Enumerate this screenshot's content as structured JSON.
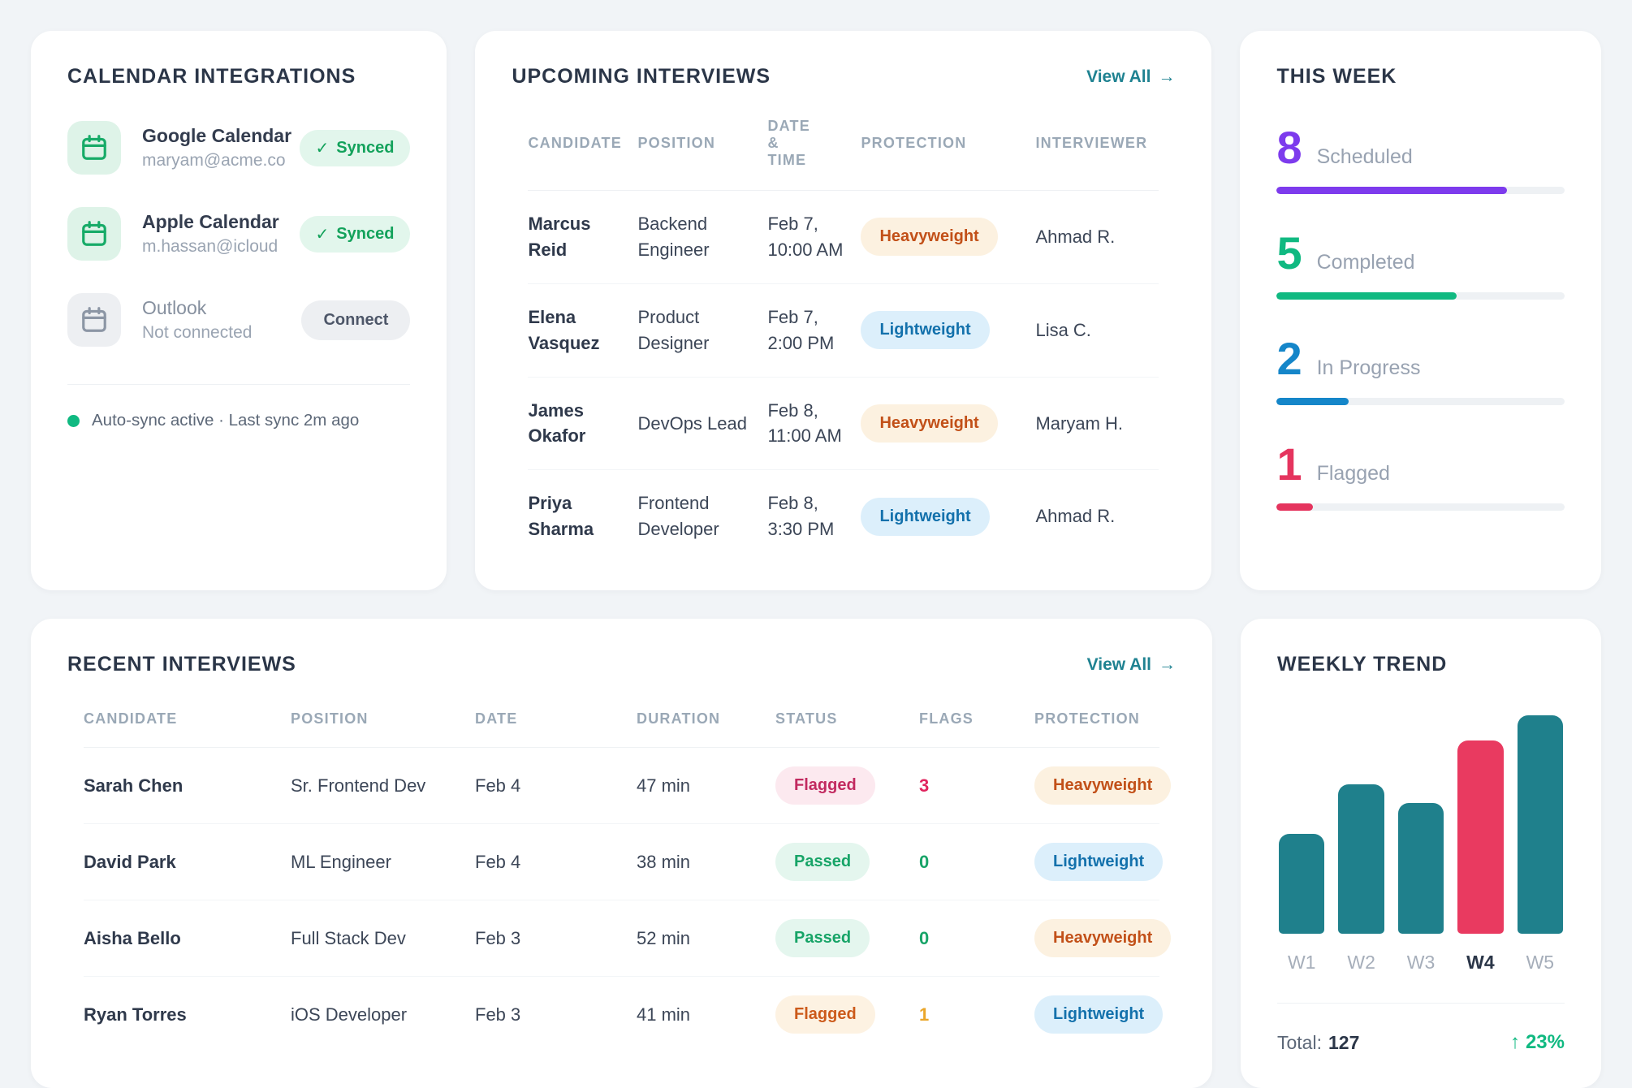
{
  "icons": {
    "check": "✓",
    "arrow_right": "→",
    "arrow_up": "↑"
  },
  "calendar_card": {
    "title": "CALENDAR INTEGRATIONS",
    "integrations": [
      {
        "name": "Google Calendar",
        "detail": "maryam@acme.co",
        "action": "Synced"
      },
      {
        "name": "Apple Calendar",
        "detail": "m.hassan@icloud",
        "action": "Synced"
      },
      {
        "name": "Outlook",
        "detail": "Not connected",
        "action": "Connect"
      }
    ],
    "footer": "Auto-sync active · Last sync 2m ago"
  },
  "upcoming_card": {
    "title": "UPCOMING INTERVIEWS",
    "view_all": "View All",
    "columns": {
      "candidate": "CANDIDATE",
      "position": "POSITION",
      "datetime": "DATE & TIME",
      "protection": "PROTECTION",
      "interviewer": "INTERVIEWER"
    },
    "rows": [
      {
        "candidate": "Marcus Reid",
        "position": "Backend Engineer",
        "datetime": "Feb 7, 10:00 AM",
        "protection": "Heavyweight",
        "interviewer": "Ahmad R."
      },
      {
        "candidate": "Elena Vasquez",
        "position": "Product Designer",
        "datetime": "Feb 7, 2:00 PM",
        "protection": "Lightweight",
        "interviewer": "Lisa C."
      },
      {
        "candidate": "James Okafor",
        "position": "DevOps Lead",
        "datetime": "Feb 8, 11:00 AM",
        "protection": "Heavyweight",
        "interviewer": "Maryam H."
      },
      {
        "candidate": "Priya Sharma",
        "position": "Frontend Developer",
        "datetime": "Feb 8, 3:30 PM",
        "protection": "Lightweight",
        "interviewer": "Ahmad R."
      }
    ]
  },
  "this_week_card": {
    "title": "THIS WEEK",
    "stats": [
      {
        "value": "8",
        "label": "Scheduled",
        "color": "#7d3bed",
        "pct": 80
      },
      {
        "value": "5",
        "label": "Completed",
        "color": "#10b981",
        "pct": 62.5
      },
      {
        "value": "2",
        "label": "In Progress",
        "color": "#1586c9",
        "pct": 25
      },
      {
        "value": "1",
        "label": "Flagged",
        "color": "#e5345e",
        "pct": 12.5
      }
    ]
  },
  "recent_card": {
    "title": "RECENT INTERVIEWS",
    "view_all": "View All",
    "columns": {
      "candidate": "CANDIDATE",
      "position": "POSITION",
      "date": "DATE",
      "duration": "DURATION",
      "status": "STATUS",
      "flags": "FLAGS",
      "protection": "PROTECTION"
    },
    "rows": [
      {
        "candidate": "Sarah Chen",
        "position": "Sr. Frontend Dev",
        "date": "Feb 4",
        "duration": "47 min",
        "status": "Flagged",
        "flags": "3",
        "flags_color": "#e0245e",
        "protection": "Heavyweight"
      },
      {
        "candidate": "David Park",
        "position": "ML Engineer",
        "date": "Feb 4",
        "duration": "38 min",
        "status": "Passed",
        "flags": "0",
        "flags_color": "#18a468",
        "protection": "Lightweight"
      },
      {
        "candidate": "Aisha Bello",
        "position": "Full Stack Dev",
        "date": "Feb 3",
        "duration": "52 min",
        "status": "Passed",
        "flags": "0",
        "flags_color": "#18a468",
        "protection": "Heavyweight"
      },
      {
        "candidate": "Ryan Torres",
        "position": "iOS Developer",
        "date": "Feb 3",
        "duration": "41 min",
        "status": "Flagged",
        "flags": "1",
        "flags_color": "#eaa62a",
        "protection": "Lightweight"
      }
    ]
  },
  "weekly_trend_card": {
    "title": "WEEKLY TREND",
    "total_label": "Total:",
    "total_value": "127",
    "delta": "23%"
  },
  "chart_data": {
    "type": "bar",
    "title": "WEEKLY TREND",
    "categories": [
      "W1",
      "W2",
      "W3",
      "W4",
      "W5"
    ],
    "values": [
      16,
      24,
      21,
      31,
      35
    ],
    "highlight_index": 3,
    "bar_color": "#1f808c",
    "highlight_color": "#e93a60",
    "xlabel": "",
    "ylabel": "",
    "ylim": [
      0,
      35
    ],
    "grid": false,
    "legend": false,
    "total": 127,
    "delta_pct": 23
  }
}
